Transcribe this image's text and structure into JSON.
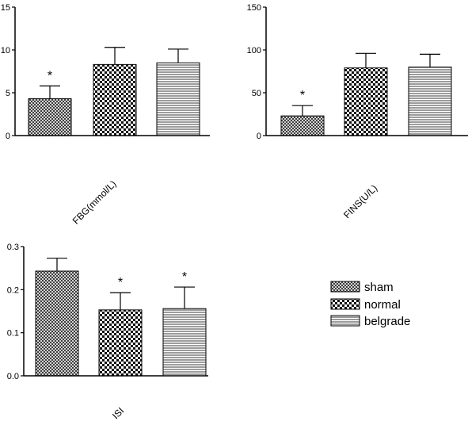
{
  "chart_data": [
    {
      "type": "bar",
      "categories": [
        "sham",
        "normal",
        "belgrade"
      ],
      "values": [
        4.3,
        8.3,
        8.5
      ],
      "errors": [
        1.5,
        2.0,
        1.6
      ],
      "significance": [
        "*",
        "",
        ""
      ],
      "xlabel": "FBG(mmol/L)",
      "ylim": [
        0,
        15
      ],
      "yticks": [
        0,
        5,
        10,
        15
      ],
      "ytick_labels": [
        "0",
        "5",
        "10",
        "15"
      ]
    },
    {
      "type": "bar",
      "categories": [
        "sham",
        "normal",
        "belgrade"
      ],
      "values": [
        23,
        79,
        80
      ],
      "errors": [
        12,
        17,
        15
      ],
      "significance": [
        "*",
        "",
        ""
      ],
      "xlabel": "FINS(U/L)",
      "ylim": [
        0,
        150
      ],
      "yticks": [
        0,
        50,
        100,
        150
      ],
      "ytick_labels": [
        "0",
        "50",
        "100",
        "150"
      ]
    },
    {
      "type": "bar",
      "categories": [
        "sham",
        "normal",
        "belgrade"
      ],
      "values": [
        0.243,
        0.153,
        0.156
      ],
      "errors": [
        0.03,
        0.04,
        0.05
      ],
      "significance": [
        "",
        "*",
        "*"
      ],
      "xlabel": "ISI",
      "ylim": [
        0,
        0.3
      ],
      "yticks": [
        0,
        0.1,
        0.2,
        0.3
      ],
      "ytick_labels": [
        "0.0",
        "0.1",
        "0.2",
        "0.3"
      ]
    }
  ],
  "legend": {
    "entries": [
      {
        "label": "sham",
        "pattern": "crosshatch"
      },
      {
        "label": "normal",
        "pattern": "checkerboard"
      },
      {
        "label": "belgrade",
        "pattern": "horizontal-lines"
      }
    ]
  }
}
